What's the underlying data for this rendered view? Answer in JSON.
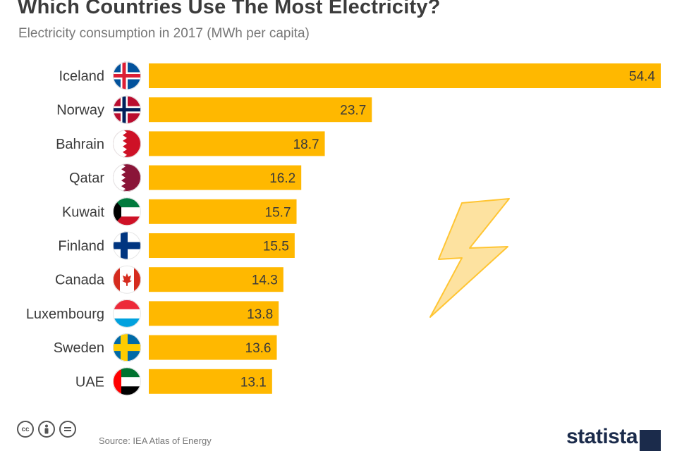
{
  "title": "Which Countries Use The Most Electricity?",
  "subtitle": "Electricity consumption in 2017 (MWh per capita)",
  "footer": {
    "cc_icons": [
      "cc-icon",
      "attribution-icon",
      "no-derivatives-icon"
    ],
    "source": "Source: IEA Atlas of Energy",
    "logo": "statista"
  },
  "colors": {
    "bar": "#ffb800",
    "text": "#3a3a3a",
    "bolt_fill": "#fde2a0",
    "bolt_stroke": "#ffc533"
  },
  "chart_data": {
    "type": "bar",
    "orientation": "horizontal",
    "categories": [
      "Iceland",
      "Norway",
      "Bahrain",
      "Qatar",
      "Kuwait",
      "Finland",
      "Canada",
      "Luxembourg",
      "Sweden",
      "UAE"
    ],
    "values": [
      54.4,
      23.7,
      18.7,
      16.2,
      15.7,
      15.5,
      14.3,
      13.8,
      13.6,
      13.1
    ],
    "value_labels": [
      "54.4",
      "23.7",
      "18.7",
      "16.2",
      "15.7",
      "15.5",
      "14.3",
      "13.8",
      "13.6",
      "13.1"
    ],
    "flags": [
      "iceland",
      "norway",
      "bahrain",
      "qatar",
      "kuwait",
      "finland",
      "canada",
      "luxembourg",
      "sweden",
      "uae"
    ],
    "xlim": [
      0,
      54.4
    ],
    "grid": false,
    "legend": "none"
  }
}
